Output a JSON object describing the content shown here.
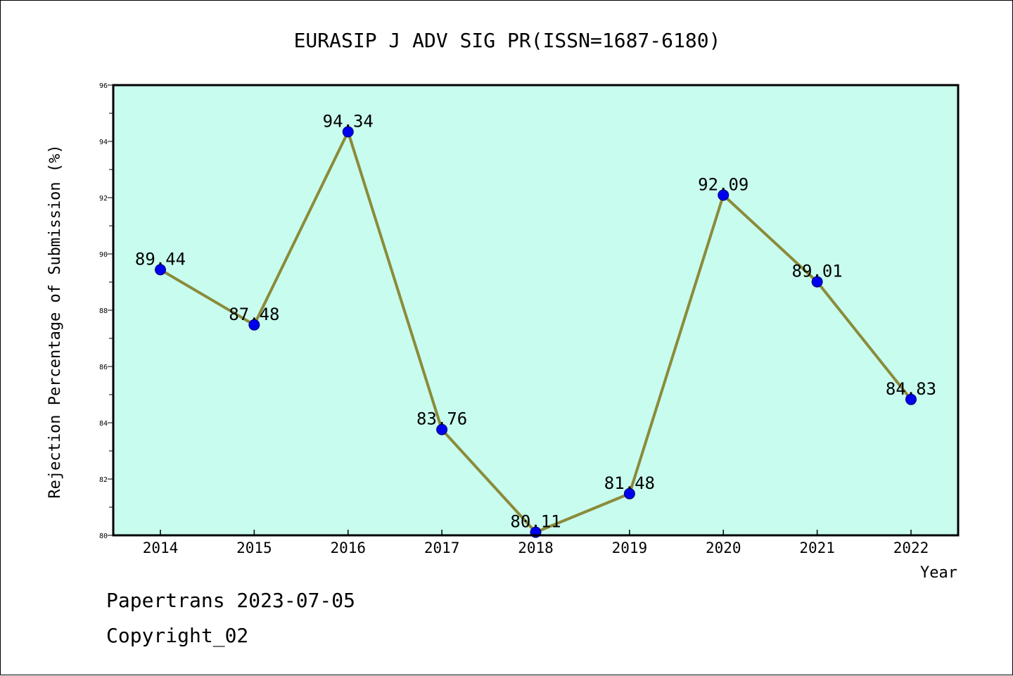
{
  "chart_data": {
    "type": "line",
    "title": "EURASIP J ADV SIG PR(ISSN=1687-6180)",
    "xlabel": "Year",
    "ylabel": "Rejection Percentage of Submission (%)",
    "categories": [
      "2014",
      "2015",
      "2016",
      "2017",
      "2018",
      "2019",
      "2020",
      "2021",
      "2022"
    ],
    "values": [
      89.44,
      87.48,
      94.34,
      83.76,
      80.11,
      81.48,
      92.09,
      89.01,
      84.83
    ],
    "data_labels": [
      "89.44",
      "87.48",
      "94.34",
      "83.76",
      "80.11",
      "81.48",
      "92.09",
      "89.01",
      "84.83"
    ],
    "ylim": [
      80,
      96
    ],
    "yticks": [
      "80",
      "82",
      "84",
      "86",
      "88",
      "90",
      "92",
      "94",
      "96"
    ],
    "grid": false,
    "legend": "none",
    "colors": {
      "plot_background": "#c8fcee",
      "line": "#8b8b3a",
      "marker": "#0000ee"
    }
  },
  "footer": {
    "line1": "Papertrans 2023-07-05",
    "line2": "Copyright_02"
  }
}
